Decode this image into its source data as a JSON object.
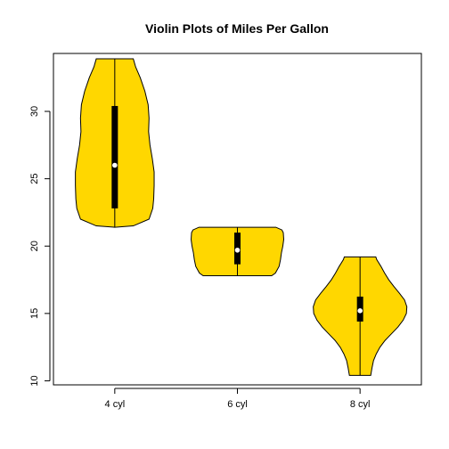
{
  "chart_data": {
    "type": "violin",
    "title": "Violin Plots of Miles Per Gallon",
    "xlabel": "",
    "ylabel": "",
    "ylim": [
      9.7,
      34.3
    ],
    "yticks": [
      10,
      15,
      20,
      25,
      30
    ],
    "grid": false,
    "fill_color": "#FFD700",
    "categories": [
      "4 cyl",
      "6 cyl",
      "8 cyl"
    ],
    "violins": [
      {
        "category": "4 cyl",
        "min": 21.4,
        "q1": 22.8,
        "median": 26.0,
        "q3": 30.4,
        "max": 33.9,
        "profile": [
          [
            21.4,
            0.0
          ],
          [
            21.5,
            0.4
          ],
          [
            22.0,
            0.74
          ],
          [
            22.8,
            0.82
          ],
          [
            23.5,
            0.84
          ],
          [
            24.5,
            0.85
          ],
          [
            25.5,
            0.85
          ],
          [
            26.5,
            0.81
          ],
          [
            27.5,
            0.76
          ],
          [
            28.5,
            0.73
          ],
          [
            29.5,
            0.74
          ],
          [
            30.5,
            0.72
          ],
          [
            31.5,
            0.65
          ],
          [
            32.5,
            0.55
          ],
          [
            33.3,
            0.45
          ],
          [
            33.9,
            0.4
          ]
        ]
      },
      {
        "category": "6 cyl",
        "min": 17.8,
        "q1": 18.65,
        "median": 19.7,
        "q3": 21.0,
        "max": 21.4,
        "profile": [
          [
            17.8,
            0.74
          ],
          [
            18.0,
            0.82
          ],
          [
            18.5,
            0.9
          ],
          [
            19.0,
            0.93
          ],
          [
            19.5,
            0.95
          ],
          [
            20.0,
            0.98
          ],
          [
            20.5,
            1.0
          ],
          [
            21.0,
            0.99
          ],
          [
            21.2,
            0.96
          ],
          [
            21.4,
            0.83
          ]
        ]
      },
      {
        "category": "8 cyl",
        "min": 10.4,
        "q1": 14.4,
        "median": 15.2,
        "q3": 16.25,
        "max": 19.2,
        "profile": [
          [
            10.4,
            0.23
          ],
          [
            11.0,
            0.26
          ],
          [
            11.5,
            0.29
          ],
          [
            12.0,
            0.35
          ],
          [
            12.5,
            0.43
          ],
          [
            13.0,
            0.54
          ],
          [
            13.5,
            0.68
          ],
          [
            14.0,
            0.82
          ],
          [
            14.5,
            0.93
          ],
          [
            15.0,
            1.0
          ],
          [
            15.5,
            1.01
          ],
          [
            16.0,
            0.96
          ],
          [
            16.5,
            0.85
          ],
          [
            17.0,
            0.73
          ],
          [
            17.5,
            0.62
          ],
          [
            18.0,
            0.53
          ],
          [
            18.5,
            0.45
          ],
          [
            19.0,
            0.36
          ],
          [
            19.2,
            0.34
          ]
        ]
      }
    ]
  }
}
